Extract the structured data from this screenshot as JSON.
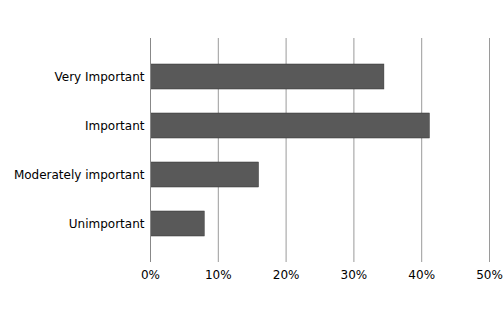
{
  "chart_data": {
    "type": "bar",
    "orientation": "horizontal",
    "categories": [
      "Very Important",
      "Important",
      "Moderately important",
      "Unimportant"
    ],
    "values": [
      34.5,
      41.2,
      16,
      8
    ],
    "color": "#595959",
    "xlim": [
      0,
      50
    ],
    "xticks": [
      {
        "value": 0,
        "label": "0%"
      },
      {
        "value": 10,
        "label": "10%"
      },
      {
        "value": 20,
        "label": "20%"
      },
      {
        "value": 30,
        "label": "30%"
      },
      {
        "value": 40,
        "label": "40%"
      },
      {
        "value": 50,
        "label": "50%"
      }
    ],
    "grid": true
  }
}
